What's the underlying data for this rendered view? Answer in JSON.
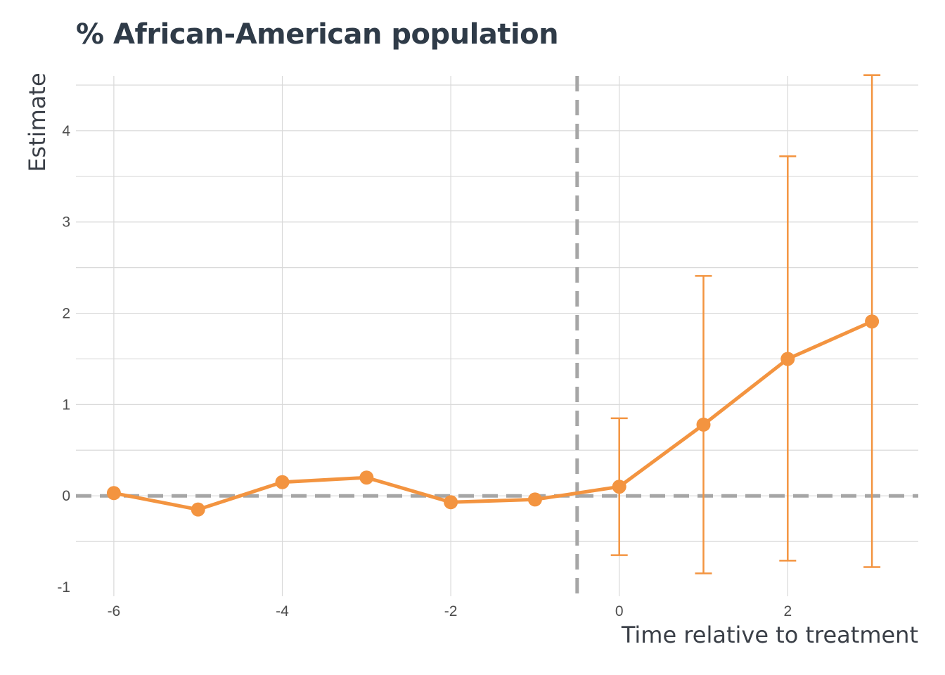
{
  "chart_data": {
    "type": "line",
    "title": "% African-American population",
    "xlabel": "Time relative to treatment",
    "ylabel": "Estimate",
    "x_ticks": [
      -6,
      -4,
      -2,
      0,
      2
    ],
    "y_ticks": [
      -1,
      0,
      1,
      2,
      3,
      4
    ],
    "xlim": [
      -6.45,
      3.55
    ],
    "ylim": [
      -1.1,
      4.6
    ],
    "grid": true,
    "reference_lines": {
      "horizontal": 0,
      "vertical": -0.5
    },
    "series": [
      {
        "x": [
          -6,
          -5,
          -4,
          -3,
          -2,
          -1,
          0,
          1,
          2,
          3
        ],
        "values": [
          0.03,
          -0.15,
          0.15,
          0.2,
          -0.07,
          -0.04,
          0.1,
          0.78,
          1.5,
          1.91
        ],
        "ci_lower": [
          null,
          null,
          null,
          null,
          null,
          null,
          -0.65,
          -0.85,
          -0.71,
          -0.78
        ],
        "ci_upper": [
          null,
          null,
          null,
          null,
          null,
          null,
          0.85,
          2.41,
          3.72,
          4.61
        ]
      }
    ],
    "colors": {
      "series": "#f39440",
      "reference": "#a6a6a6",
      "grid": "#d9d9d9"
    }
  }
}
